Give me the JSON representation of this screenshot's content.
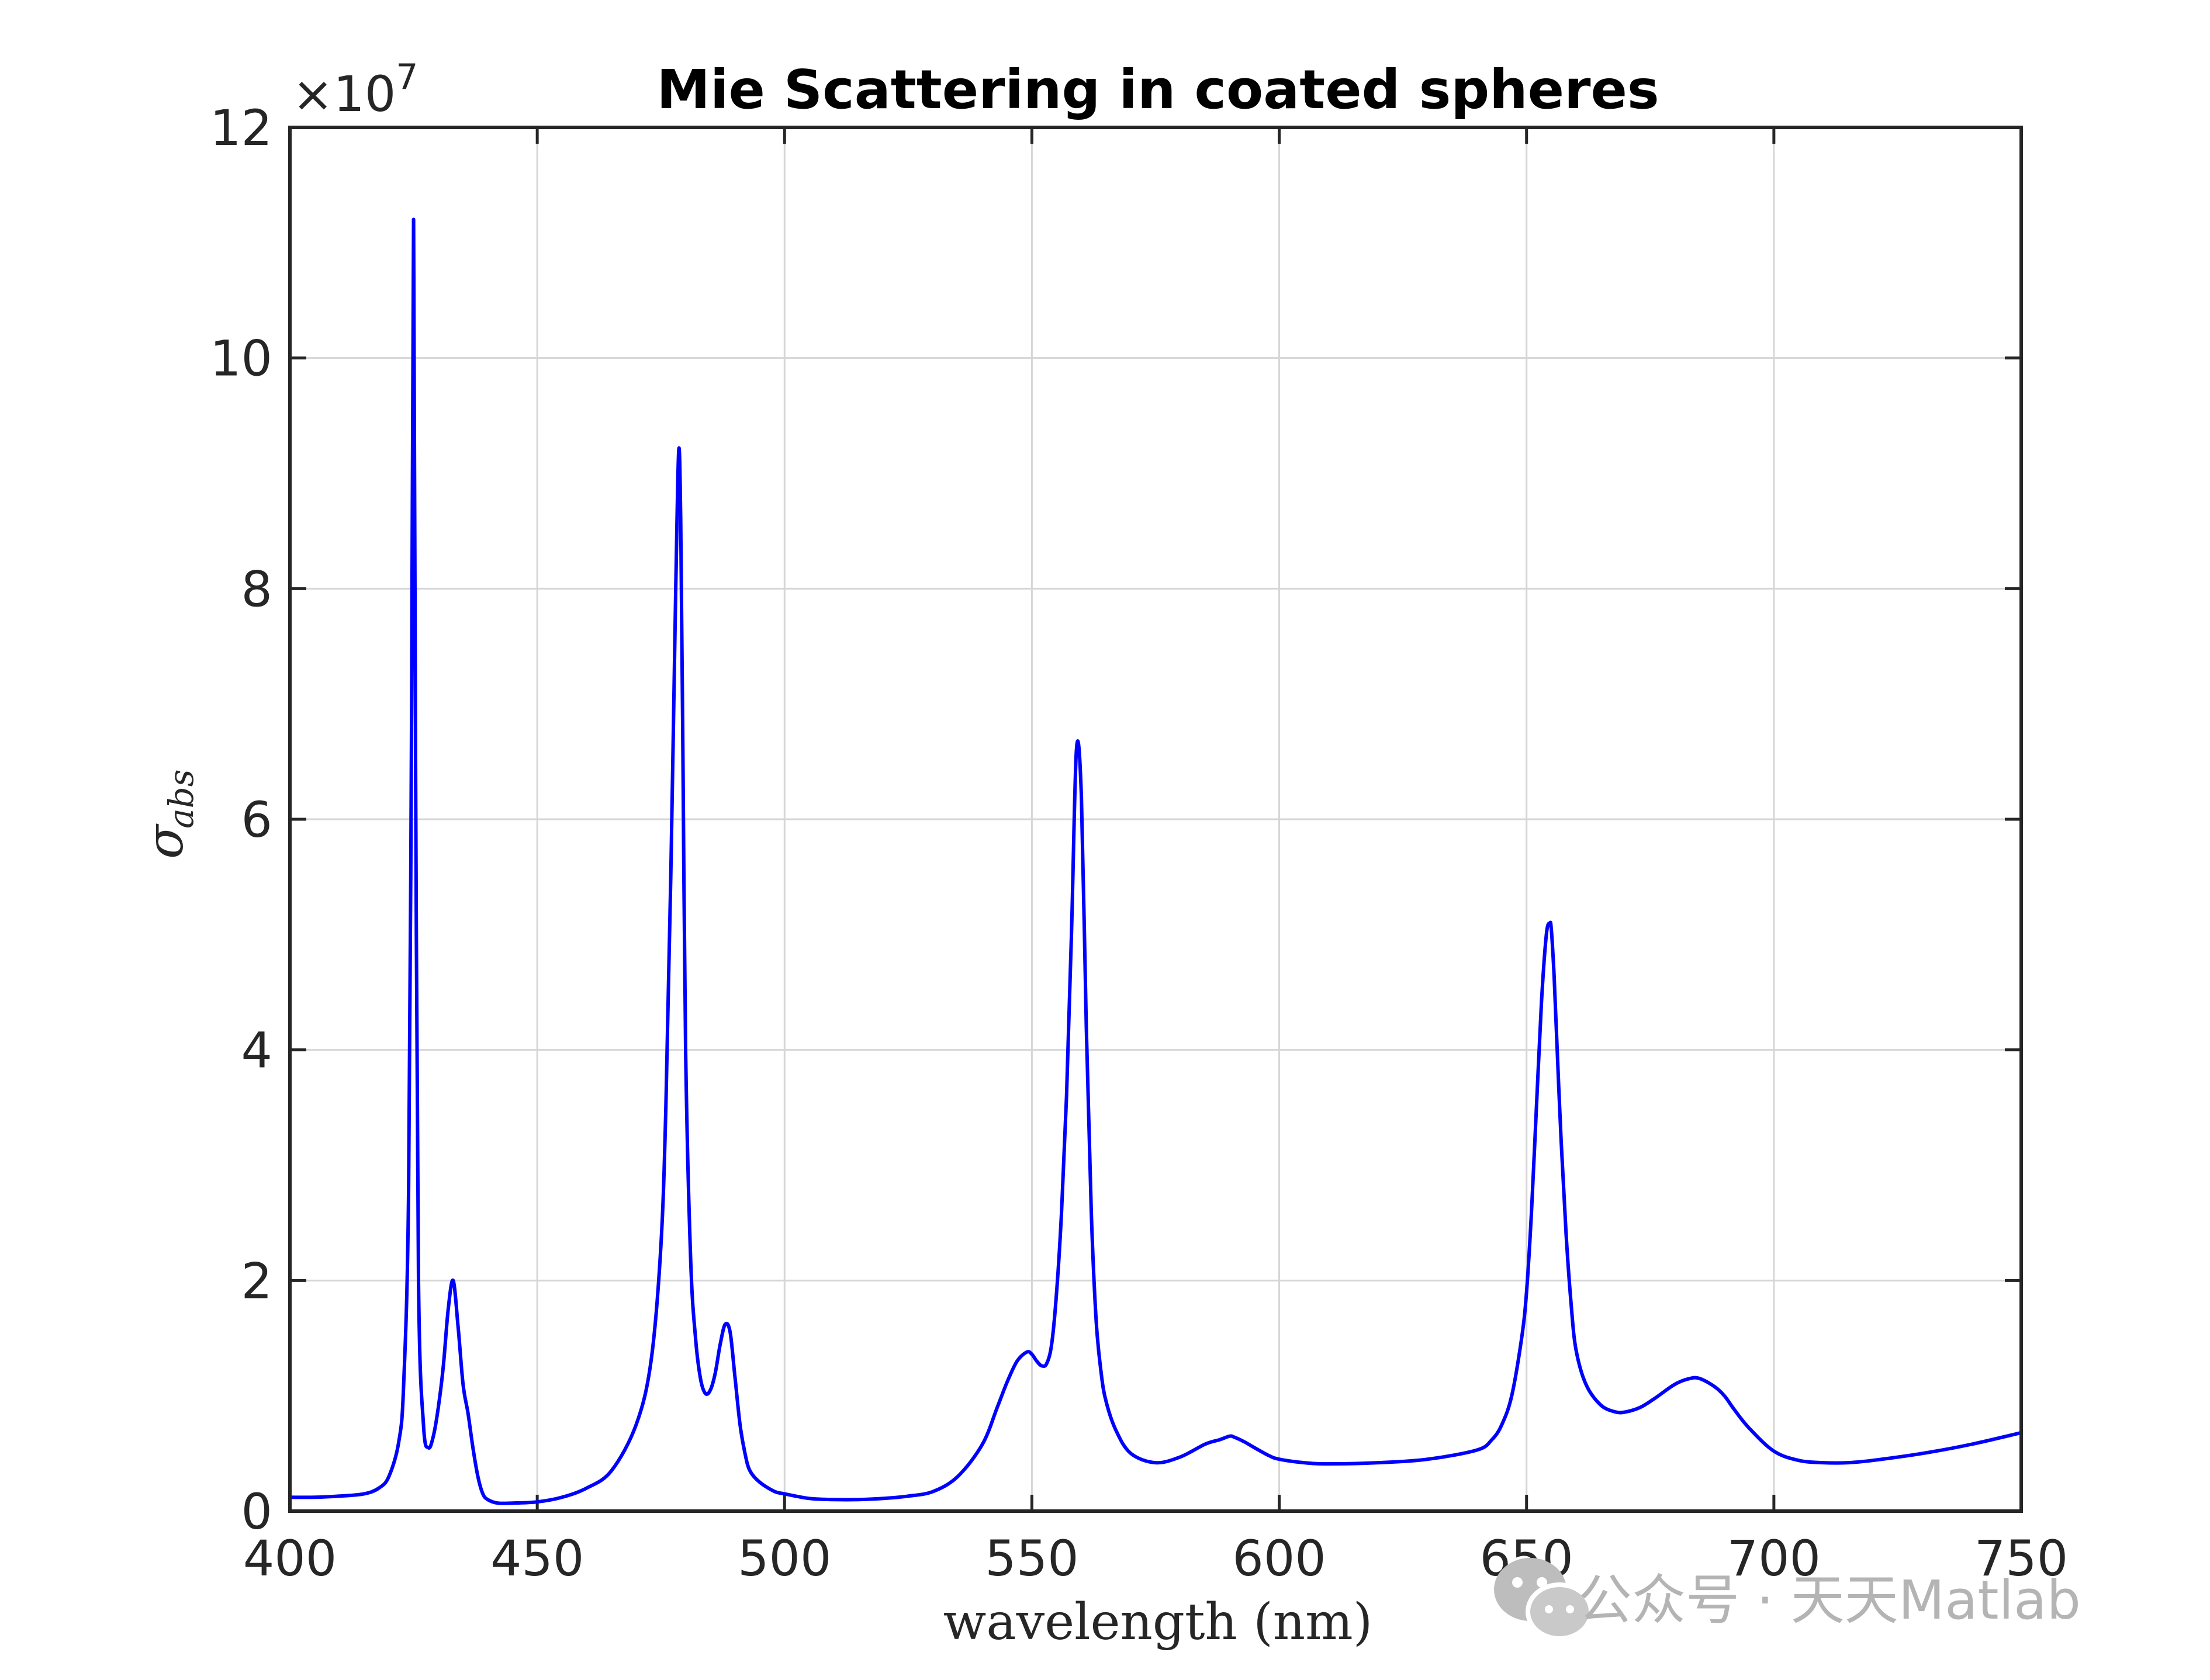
{
  "chart_data": {
    "type": "line",
    "title": "Mie Scattering in coated spheres",
    "xlabel": "wavelength (nm)",
    "ylabel": "σ",
    "ylabel_subscript": "abs",
    "y_exponent_base": "×10",
    "y_exponent_power": "7",
    "xlim": [
      400,
      750
    ],
    "ylim": [
      0,
      12
    ],
    "xticks": [
      400,
      450,
      500,
      550,
      600,
      650,
      700,
      750
    ],
    "yticks": [
      0,
      2,
      4,
      6,
      8,
      10,
      12
    ],
    "grid": true,
    "line_color": "#0000ff",
    "series": [
      {
        "x": [
          400,
          405,
          410,
          415,
          418,
          420,
          422,
          423,
          424,
          424.6,
          425,
          425.4,
          426,
          427,
          428,
          429,
          430,
          431,
          432,
          433,
          434,
          435,
          436,
          437,
          438,
          439,
          440,
          442,
          445,
          450,
          455,
          460,
          465,
          470,
          473,
          475,
          476,
          477,
          478,
          478.6,
          479,
          479.4,
          480,
          481,
          482,
          483,
          484,
          485,
          486,
          487,
          488,
          489,
          490,
          491,
          492,
          493,
          495,
          498,
          500,
          505,
          510,
          515,
          520,
          525,
          530,
          535,
          540,
          543,
          545,
          547,
          549,
          550,
          551,
          552,
          553,
          554,
          555,
          556,
          557,
          558,
          559,
          560,
          561,
          562,
          563,
          564,
          565,
          567,
          570,
          575,
          580,
          585,
          588,
          590,
          591,
          593,
          595,
          598,
          600,
          605,
          610,
          620,
          630,
          640,
          643,
          645,
          647,
          649,
          650,
          651,
          652,
          653,
          654,
          654.7,
          655,
          655.5,
          656,
          657,
          658,
          659,
          660,
          662,
          665,
          668,
          670,
          673,
          676,
          680,
          683,
          685,
          688,
          690,
          692,
          695,
          700,
          705,
          710,
          715,
          720,
          730,
          740,
          750
        ],
        "y": [
          0.12,
          0.12,
          0.13,
          0.15,
          0.2,
          0.3,
          0.6,
          1.1,
          2.8,
          7.0,
          11.2,
          6.5,
          2.0,
          0.75,
          0.55,
          0.65,
          0.9,
          1.25,
          1.75,
          2.0,
          1.6,
          1.1,
          0.85,
          0.55,
          0.3,
          0.15,
          0.1,
          0.07,
          0.07,
          0.08,
          0.12,
          0.2,
          0.35,
          0.75,
          1.3,
          2.3,
          3.5,
          5.5,
          8.0,
          9.2,
          8.6,
          6.8,
          4.0,
          2.2,
          1.5,
          1.15,
          1.02,
          1.05,
          1.2,
          1.45,
          1.62,
          1.55,
          1.15,
          0.75,
          0.5,
          0.35,
          0.25,
          0.17,
          0.15,
          0.11,
          0.1,
          0.1,
          0.11,
          0.13,
          0.17,
          0.3,
          0.58,
          0.9,
          1.12,
          1.3,
          1.38,
          1.36,
          1.3,
          1.26,
          1.28,
          1.45,
          1.9,
          2.6,
          3.6,
          5.0,
          6.6,
          6.2,
          4.2,
          2.6,
          1.65,
          1.2,
          0.95,
          0.7,
          0.5,
          0.42,
          0.47,
          0.58,
          0.62,
          0.65,
          0.64,
          0.6,
          0.55,
          0.48,
          0.45,
          0.42,
          0.41,
          0.42,
          0.45,
          0.53,
          0.62,
          0.75,
          1.0,
          1.5,
          1.9,
          2.6,
          3.5,
          4.4,
          5.0,
          5.1,
          5.05,
          4.7,
          4.2,
          3.2,
          2.4,
          1.8,
          1.4,
          1.1,
          0.92,
          0.86,
          0.86,
          0.9,
          0.98,
          1.1,
          1.15,
          1.15,
          1.08,
          1.0,
          0.88,
          0.72,
          0.52,
          0.44,
          0.42,
          0.42,
          0.44,
          0.5,
          0.58,
          0.68
        ]
      }
    ]
  },
  "watermark": {
    "text": "公众号 · 天天Matlab",
    "icon": "wechat-icon"
  }
}
